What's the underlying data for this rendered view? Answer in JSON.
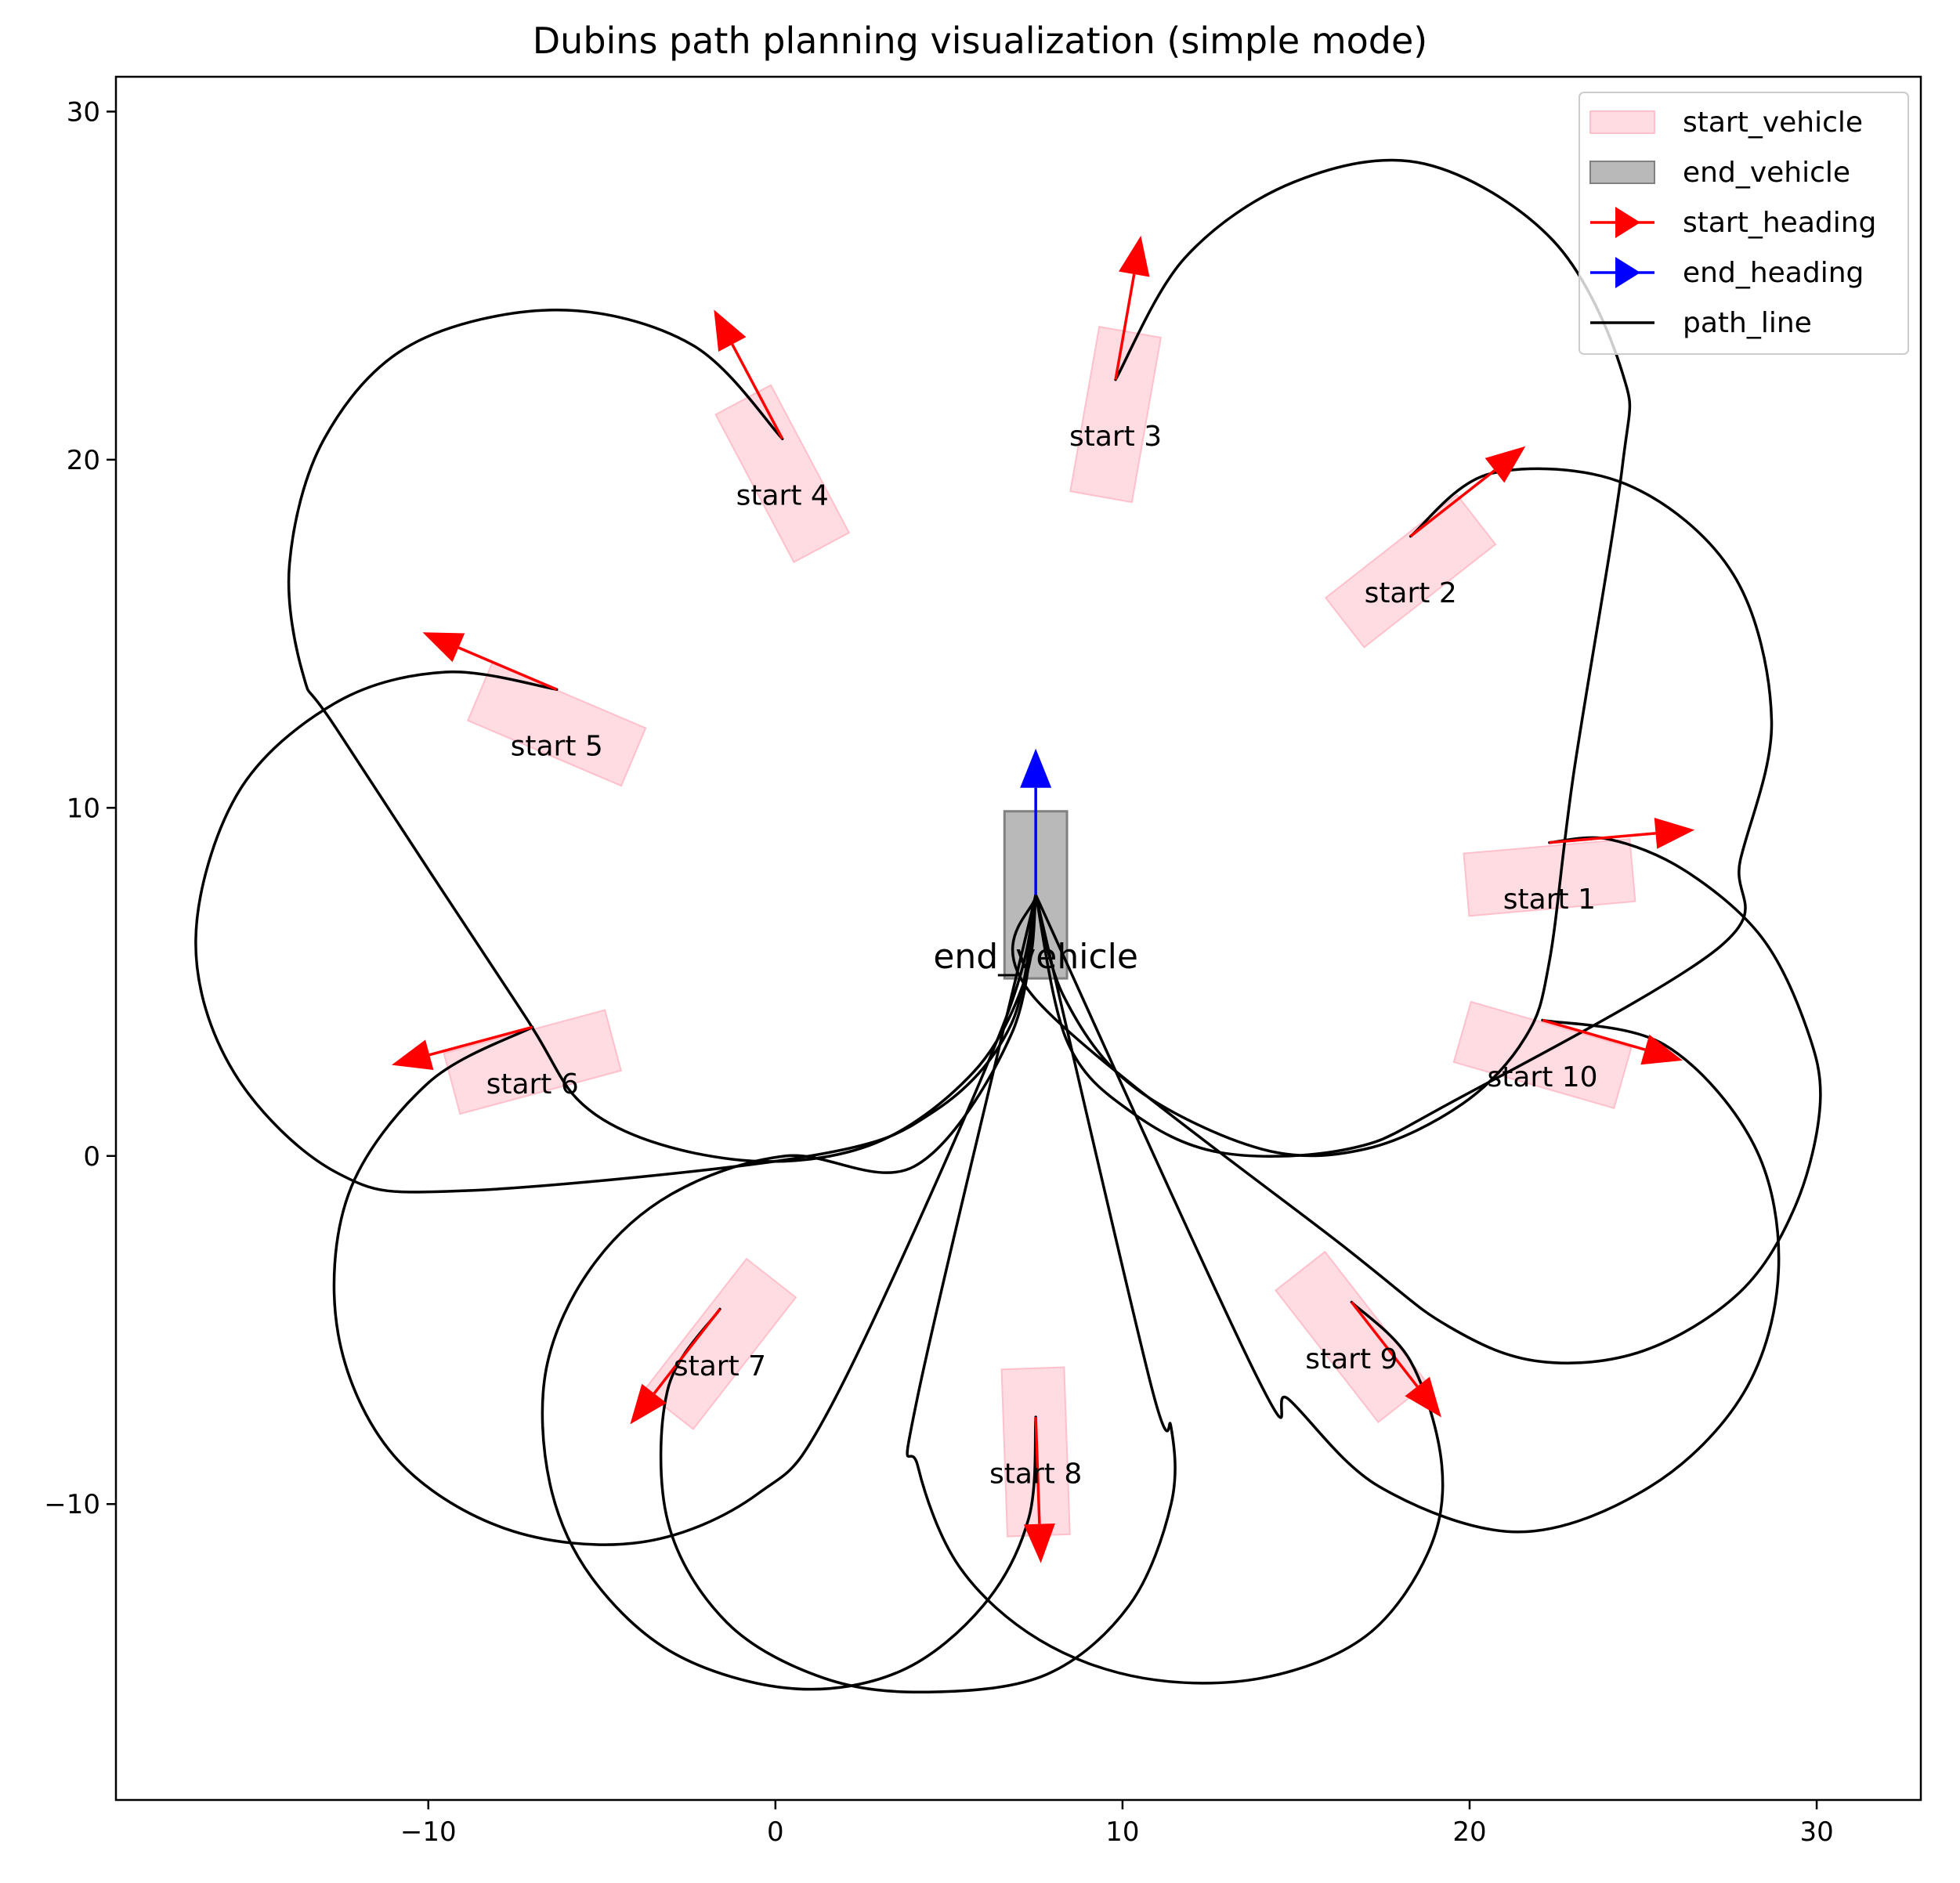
{
  "chart_data": {
    "type": "line",
    "title": "Dubins path planning visualization (simple mode)",
    "xlabel": "",
    "ylabel": "",
    "xlim": [
      -19,
      33
    ],
    "ylim": [
      -18.5,
      31
    ],
    "xticks": [
      -10,
      0,
      10,
      20,
      30
    ],
    "yticks": [
      30,
      20,
      10,
      0,
      -10
    ],
    "xtick_labels": [
      "−10",
      "0",
      "10",
      "20",
      "30"
    ],
    "ytick_labels": [
      "30",
      "20",
      "10",
      "0",
      "−10"
    ],
    "grid": false,
    "legend_position": "top-right",
    "legend": [
      {
        "label": "start_vehicle",
        "kind": "patch",
        "color": "#ffc0cb"
      },
      {
        "label": "end_vehicle",
        "kind": "patch",
        "color": "#808080"
      },
      {
        "label": "start_heading",
        "kind": "arrow",
        "color": "#ff0000"
      },
      {
        "label": "end_heading",
        "kind": "arrow",
        "color": "#0000ff"
      },
      {
        "label": "path_line",
        "kind": "line",
        "color": "#000000"
      }
    ],
    "colors": {
      "start_vehicle": "#ffc0cb",
      "end_vehicle": "#808080",
      "start_heading": "#ff0000",
      "end_heading": "#0000ff",
      "path_line": "#000000"
    },
    "end": {
      "label": "end_vehicle",
      "x": 7.5,
      "y": 7.5,
      "heading_deg": 90
    },
    "starts": [
      {
        "label": "start 1",
        "x": 22.3,
        "y": 9.0,
        "heading_deg": 5
      },
      {
        "label": "start 2",
        "x": 18.3,
        "y": 17.8,
        "heading_deg": 38
      },
      {
        "label": "start 3",
        "x": 9.8,
        "y": 22.3,
        "heading_deg": 80
      },
      {
        "label": "start 4",
        "x": 0.2,
        "y": 20.6,
        "heading_deg": 118
      },
      {
        "label": "start 5",
        "x": -6.3,
        "y": 13.4,
        "heading_deg": 157
      },
      {
        "label": "start 6",
        "x": -7.0,
        "y": 3.7,
        "heading_deg": 195
      },
      {
        "label": "start 7",
        "x": -1.6,
        "y": -4.4,
        "heading_deg": 232
      },
      {
        "label": "start 8",
        "x": 7.5,
        "y": -7.5,
        "heading_deg": 272
      },
      {
        "label": "start 9",
        "x": 16.6,
        "y": -4.2,
        "heading_deg": 308
      },
      {
        "label": "start 10",
        "x": 22.1,
        "y": 3.9,
        "heading_deg": 344
      }
    ],
    "paths": [
      [
        [
          22.3,
          9.0
        ],
        [
          24.0,
          9.1
        ],
        [
          26.2,
          8.2
        ],
        [
          28.4,
          6.3
        ],
        [
          29.7,
          3.7
        ],
        [
          30.1,
          1.5
        ],
        [
          29.4,
          -1.4
        ],
        [
          27.8,
          -3.9
        ],
        [
          25.0,
          -5.6
        ],
        [
          22.0,
          -5.9
        ],
        [
          19.4,
          -4.9
        ],
        [
          16.5,
          -2.7
        ],
        [
          7.5,
          4.5
        ],
        [
          7.5,
          7.5
        ]
      ],
      [
        [
          18.3,
          17.8
        ],
        [
          20.6,
          19.6
        ],
        [
          24.5,
          19.3
        ],
        [
          27.6,
          16.7
        ],
        [
          28.7,
          12.5
        ],
        [
          27.8,
          8.5
        ],
        [
          27.2,
          6.0
        ],
        [
          19.4,
          1.5
        ],
        [
          16.5,
          0.2
        ],
        [
          12.8,
          0.1
        ],
        [
          10.2,
          1.3
        ],
        [
          8.4,
          3.3
        ],
        [
          7.5,
          7.5
        ]
      ],
      [
        [
          9.8,
          22.3
        ],
        [
          11.8,
          25.8
        ],
        [
          15.0,
          28.0
        ],
        [
          18.7,
          28.5
        ],
        [
          22.4,
          26.3
        ],
        [
          24.4,
          22.5
        ],
        [
          24.4,
          19.8
        ],
        [
          23.0,
          11.0
        ],
        [
          22.3,
          5.6
        ],
        [
          21.6,
          3.4
        ],
        [
          19.8,
          1.5
        ],
        [
          17.0,
          0.2
        ],
        [
          14.0,
          0.2
        ],
        [
          10.3,
          2.0
        ],
        [
          8.3,
          4.6
        ],
        [
          7.5,
          7.5
        ]
      ],
      [
        [
          0.2,
          20.6
        ],
        [
          -2.4,
          23.3
        ],
        [
          -6.3,
          24.3
        ],
        [
          -10.5,
          23.3
        ],
        [
          -13.0,
          20.6
        ],
        [
          -14.0,
          17.0
        ],
        [
          -13.6,
          13.8
        ],
        [
          -12.6,
          12.2
        ],
        [
          -7.4,
          4.3
        ],
        [
          -5.2,
          1.2
        ],
        [
          -1.2,
          -0.1
        ],
        [
          2.7,
          0.3
        ],
        [
          5.7,
          2.4
        ],
        [
          7.2,
          5.1
        ],
        [
          7.5,
          7.5
        ]
      ],
      [
        [
          -6.3,
          13.4
        ],
        [
          -9.5,
          13.9
        ],
        [
          -12.7,
          13.0
        ],
        [
          -15.5,
          10.4
        ],
        [
          -16.7,
          6.2
        ],
        [
          -15.6,
          2.4
        ],
        [
          -12.6,
          -0.5
        ],
        [
          -9.0,
          -1.0
        ],
        [
          1.0,
          0.0
        ],
        [
          4.6,
          1.3
        ],
        [
          6.8,
          3.8
        ],
        [
          7.5,
          7.5
        ]
      ],
      [
        [
          -7.0,
          3.7
        ],
        [
          -10.0,
          2.1
        ],
        [
          -12.3,
          -1.1
        ],
        [
          -12.6,
          -5.1
        ],
        [
          -11.0,
          -8.6
        ],
        [
          -7.8,
          -10.7
        ],
        [
          -3.9,
          -11.1
        ],
        [
          -0.5,
          -9.7
        ],
        [
          1.7,
          -7.0
        ],
        [
          6.5,
          3.6
        ],
        [
          7.5,
          7.5
        ]
      ],
      [
        [
          -1.6,
          -4.4
        ],
        [
          -3.1,
          -6.7
        ],
        [
          -3.1,
          -10.5
        ],
        [
          -1.4,
          -13.4
        ],
        [
          1.4,
          -15.0
        ],
        [
          4.4,
          -15.4
        ],
        [
          7.8,
          -14.9
        ],
        [
          10.2,
          -12.9
        ],
        [
          11.4,
          -10.0
        ],
        [
          11.4,
          -7.8
        ],
        [
          10.8,
          -6.5
        ],
        [
          7.5,
          7.5
        ]
      ],
      [
        [
          7.5,
          -7.5
        ],
        [
          7.3,
          -10.4
        ],
        [
          6.0,
          -12.9
        ],
        [
          3.6,
          -14.8
        ],
        [
          0.5,
          -15.3
        ],
        [
          -2.9,
          -14.3
        ],
        [
          -5.3,
          -12.1
        ],
        [
          -6.5,
          -9.4
        ],
        [
          -6.6,
          -6.1
        ],
        [
          -5.3,
          -3.2
        ],
        [
          -3.0,
          -1.1
        ],
        [
          0.3,
          0.0
        ],
        [
          4.0,
          -0.3
        ],
        [
          6.8,
          3.5
        ],
        [
          7.5,
          7.5
        ]
      ],
      [
        [
          16.6,
          -4.2
        ],
        [
          18.3,
          -5.9
        ],
        [
          19.2,
          -8.9
        ],
        [
          18.8,
          -11.4
        ],
        [
          17.0,
          -13.8
        ],
        [
          14.0,
          -15.0
        ],
        [
          10.6,
          -15.0
        ],
        [
          7.6,
          -13.9
        ],
        [
          5.3,
          -11.8
        ],
        [
          4.1,
          -8.9
        ],
        [
          4.1,
          -6.9
        ],
        [
          7.5,
          7.5
        ]
      ],
      [
        [
          22.1,
          3.9
        ],
        [
          25.6,
          3.2
        ],
        [
          28.2,
          0.3
        ],
        [
          28.9,
          -3.3
        ],
        [
          27.9,
          -6.8
        ],
        [
          25.2,
          -9.5
        ],
        [
          21.4,
          -10.8
        ],
        [
          17.4,
          -9.5
        ],
        [
          14.8,
          -7.0
        ],
        [
          13.9,
          -6.4
        ],
        [
          7.5,
          7.5
        ]
      ]
    ]
  }
}
